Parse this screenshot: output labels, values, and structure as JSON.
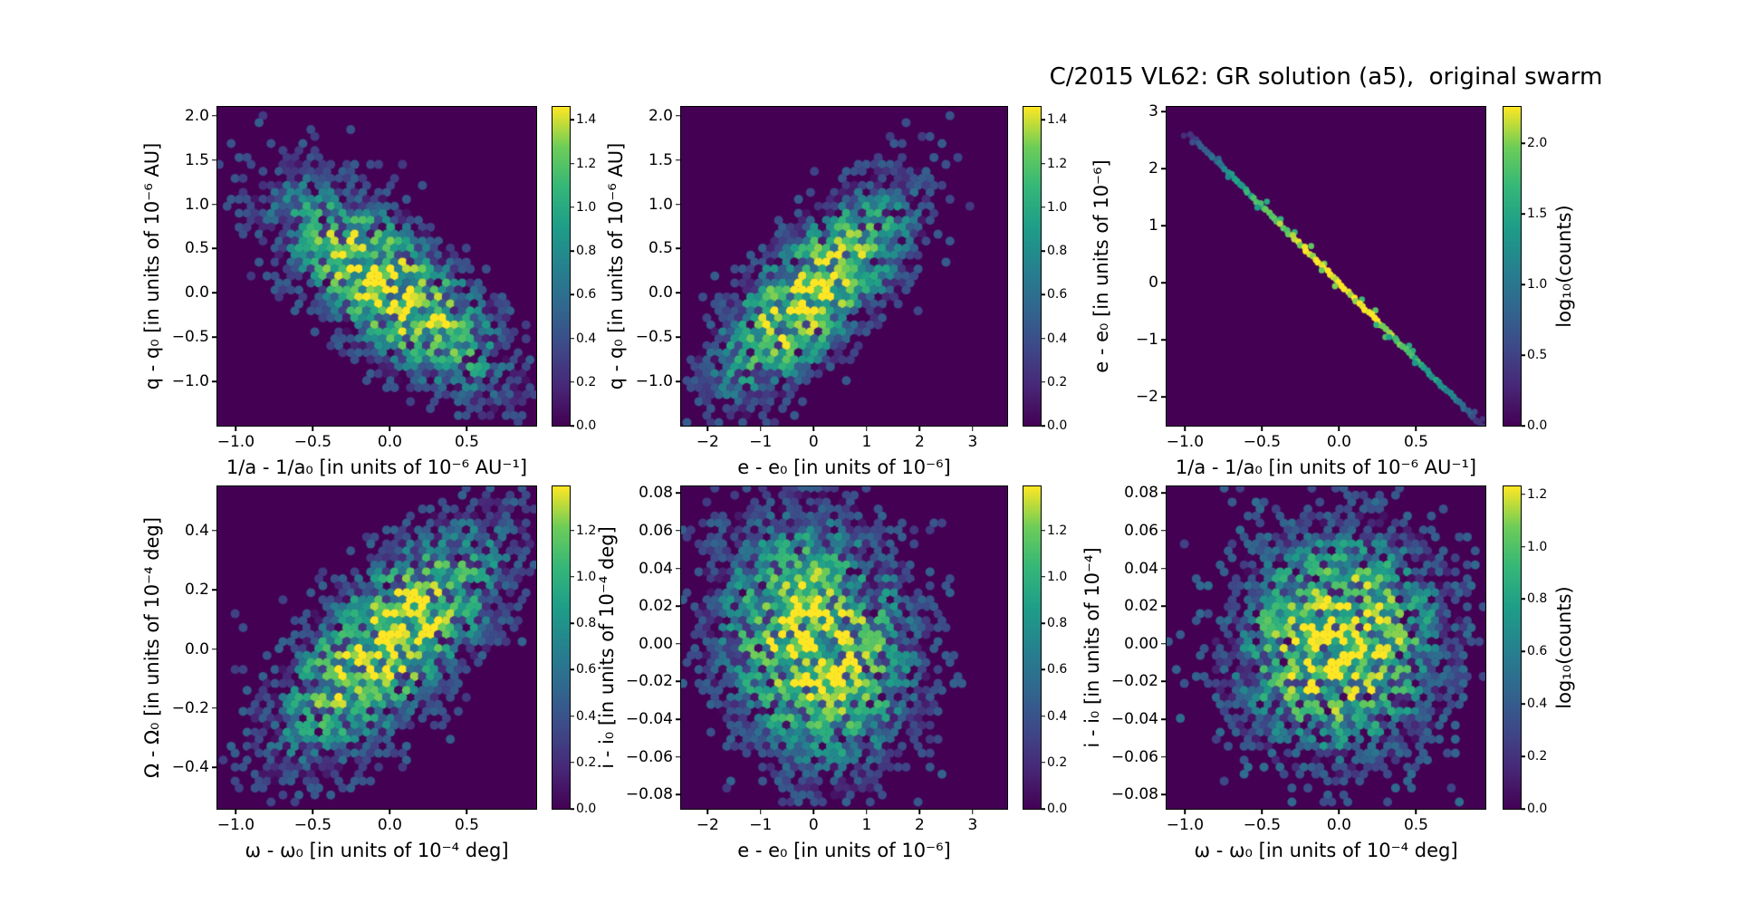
{
  "title": "C/2015 VL62: GR solution (a5),  original swarm",
  "colors": {
    "figure_background": "#ffffff",
    "plot_background": "#440154",
    "text": "#000000",
    "colormap": "viridis",
    "viridis_stops": [
      "#440154",
      "#482878",
      "#3e4a89",
      "#31688e",
      "#26828e",
      "#1f9e89",
      "#35b779",
      "#6dcd59",
      "#fde725"
    ]
  },
  "chart_data": [
    {
      "type": "hexbin",
      "xlabel": "1/a - 1/a₀ [in units of 10⁻⁶ AU⁻¹]",
      "ylabel": "q - q₀ [in units of 10⁻⁶ AU]",
      "xlim": [
        -1.12,
        0.95
      ],
      "ylim": [
        -1.5,
        2.1
      ],
      "xticks": {
        "values": [
          -1.0,
          -0.5,
          0.0,
          0.5
        ],
        "labels": [
          "−1.0",
          "−0.5",
          "0.0",
          "0.5"
        ]
      },
      "yticks": {
        "values": [
          2.0,
          1.5,
          1.0,
          0.5,
          0.0,
          -0.5,
          -1.0
        ],
        "labels": [
          "2.0",
          "1.5",
          "1.0",
          "0.5",
          "0.0",
          "−0.5",
          "−1.0"
        ]
      },
      "colorbar": {
        "vmax": 1.46,
        "ticks": {
          "values": [
            0.0,
            0.2,
            0.4,
            0.6,
            0.8,
            1.0,
            1.2,
            1.4
          ],
          "labels": [
            "0.0",
            "0.2",
            "0.4",
            "0.6",
            "0.8",
            "1.0",
            "1.2",
            "1.4"
          ]
        }
      },
      "distribution": {
        "kind": "blob",
        "center": [
          0.0,
          0.05
        ],
        "sigma": [
          0.35,
          0.56
        ],
        "rho": -0.73,
        "peak_log10_counts": 1.46,
        "seed": 11
      }
    },
    {
      "type": "hexbin",
      "xlabel": "e - e₀ [in units of 10⁻⁶]",
      "ylabel": "q - q₀ [in units of 10⁻⁶ AU]",
      "xlim": [
        -2.5,
        3.65
      ],
      "ylim": [
        -1.5,
        2.1
      ],
      "xticks": {
        "values": [
          -2,
          -1,
          0,
          1,
          2,
          3
        ],
        "labels": [
          "−2",
          "−1",
          "0",
          "1",
          "2",
          "3"
        ]
      },
      "yticks": {
        "values": [
          2.0,
          1.5,
          1.0,
          0.5,
          0.0,
          -0.5,
          -1.0
        ],
        "labels": [
          "2.0",
          "1.5",
          "1.0",
          "0.5",
          "0.0",
          "−0.5",
          "−1.0"
        ]
      },
      "colorbar": {
        "vmax": 1.46,
        "ticks": {
          "values": [
            0.0,
            0.2,
            0.4,
            0.6,
            0.8,
            1.0,
            1.2,
            1.4
          ],
          "labels": [
            "0.0",
            "0.2",
            "0.4",
            "0.6",
            "0.8",
            "1.0",
            "1.2",
            "1.4"
          ]
        }
      },
      "distribution": {
        "kind": "blob",
        "center": [
          0.0,
          0.0
        ],
        "sigma": [
          0.88,
          0.55
        ],
        "rho": 0.73,
        "peak_log10_counts": 1.46,
        "seed": 22
      }
    },
    {
      "type": "hexbin",
      "xlabel": "1/a - 1/a₀ [in units of 10⁻⁶ AU⁻¹]",
      "ylabel": "e - e₀ [in units of 10⁻⁶]",
      "xlim": [
        -1.12,
        0.95
      ],
      "ylim": [
        -2.5,
        3.08
      ],
      "xticks": {
        "values": [
          -1.0,
          -0.5,
          0.0,
          0.5
        ],
        "labels": [
          "−1.0",
          "−0.5",
          "0.0",
          "0.5"
        ]
      },
      "yticks": {
        "values": [
          3,
          2,
          1,
          0,
          -1,
          -2
        ],
        "labels": [
          "3",
          "2",
          "1",
          "0",
          "−1",
          "−2"
        ]
      },
      "colorbar": {
        "vmax": 2.26,
        "ticks": {
          "values": [
            0.0,
            0.5,
            1.0,
            1.5,
            2.0
          ],
          "labels": [
            "0.0",
            "0.5",
            "1.0",
            "1.5",
            "2.0"
          ]
        },
        "label": "log₁₀(counts)"
      },
      "distribution": {
        "kind": "line",
        "x_start": -0.97,
        "y_start": 2.6,
        "x_end": 0.93,
        "y_end": -2.5,
        "sigma_t": 0.17,
        "peak_log10_counts": 2.26,
        "seed": 33
      }
    },
    {
      "type": "hexbin",
      "xlabel": "ω - ω₀ [in units of 10⁻⁴ deg]",
      "ylabel": "Ω - Ω₀ [in units of 10⁻⁴ deg]",
      "xlim": [
        -1.12,
        0.95
      ],
      "ylim": [
        -0.54,
        0.55
      ],
      "xticks": {
        "values": [
          -1.0,
          -0.5,
          0.0,
          0.5
        ],
        "labels": [
          "−1.0",
          "−0.5",
          "0.0",
          "0.5"
        ]
      },
      "yticks": {
        "values": [
          0.4,
          0.2,
          0.0,
          -0.2,
          -0.4
        ],
        "labels": [
          "0.4",
          "0.2",
          "0.0",
          "−0.2",
          "−0.4"
        ]
      },
      "colorbar": {
        "vmax": 1.39,
        "ticks": {
          "values": [
            0.0,
            0.2,
            0.4,
            0.6,
            0.8,
            1.0,
            1.2
          ],
          "labels": [
            "0.0",
            "0.2",
            "0.4",
            "0.6",
            "0.8",
            "1.0",
            "1.2"
          ]
        }
      },
      "distribution": {
        "kind": "blob",
        "center": [
          0.0,
          0.02
        ],
        "sigma": [
          0.36,
          0.19
        ],
        "rho": 0.7,
        "peak_log10_counts": 1.39,
        "seed": 44
      }
    },
    {
      "type": "hexbin",
      "xlabel": "e - e₀ [in units of 10⁻⁶]",
      "ylabel": "i - i₀ [in units of 10⁻⁴ deg]",
      "xlim": [
        -2.5,
        3.65
      ],
      "ylim": [
        -0.0875,
        0.0835
      ],
      "xticks": {
        "values": [
          -2,
          -1,
          0,
          1,
          2,
          3
        ],
        "labels": [
          "−2",
          "−1",
          "0",
          "1",
          "2",
          "3"
        ]
      },
      "yticks": {
        "values": [
          0.08,
          0.06,
          0.04,
          0.02,
          0.0,
          -0.02,
          -0.04,
          -0.06,
          -0.08
        ],
        "labels": [
          "0.08",
          "0.06",
          "0.04",
          "0.02",
          "0.00",
          "−0.02",
          "−0.04",
          "−0.06",
          "−0.08"
        ]
      },
      "colorbar": {
        "vmax": 1.39,
        "ticks": {
          "values": [
            0.0,
            0.2,
            0.4,
            0.6,
            0.8,
            1.0,
            1.2
          ],
          "labels": [
            "0.0",
            "0.2",
            "0.4",
            "0.6",
            "0.8",
            "1.0",
            "1.2"
          ]
        }
      },
      "distribution": {
        "kind": "blob",
        "center": [
          0.05,
          0.0
        ],
        "sigma": [
          0.88,
          0.032
        ],
        "rho": -0.15,
        "peak_log10_counts": 1.39,
        "seed": 55
      }
    },
    {
      "type": "hexbin",
      "xlabel": "ω - ω₀ [in units of 10⁻⁴ deg]",
      "ylabel": "i - i₀ [in units of 10⁻⁴]",
      "xlim": [
        -1.12,
        0.95
      ],
      "ylim": [
        -0.0875,
        0.0835
      ],
      "xticks": {
        "values": [
          -1.0,
          -0.5,
          0.0,
          0.5
        ],
        "labels": [
          "−1.0",
          "−0.5",
          "0.0",
          "0.5"
        ]
      },
      "yticks": {
        "values": [
          0.08,
          0.06,
          0.04,
          0.02,
          0.0,
          -0.02,
          -0.04,
          -0.06,
          -0.08
        ],
        "labels": [
          "0.08",
          "0.06",
          "0.04",
          "0.02",
          "0.00",
          "−0.02",
          "−0.04",
          "−0.06",
          "−0.08"
        ]
      },
      "colorbar": {
        "vmax": 1.23,
        "ticks": {
          "values": [
            0.0,
            0.2,
            0.4,
            0.6,
            0.8,
            1.0,
            1.2
          ],
          "labels": [
            "0.0",
            "0.2",
            "0.4",
            "0.6",
            "0.8",
            "1.0",
            "1.2"
          ]
        },
        "label": "log₁₀(counts)"
      },
      "distribution": {
        "kind": "blob",
        "center": [
          0.0,
          0.0
        ],
        "sigma": [
          0.34,
          0.03
        ],
        "rho": 0.05,
        "peak_log10_counts": 1.23,
        "seed": 66
      }
    }
  ]
}
